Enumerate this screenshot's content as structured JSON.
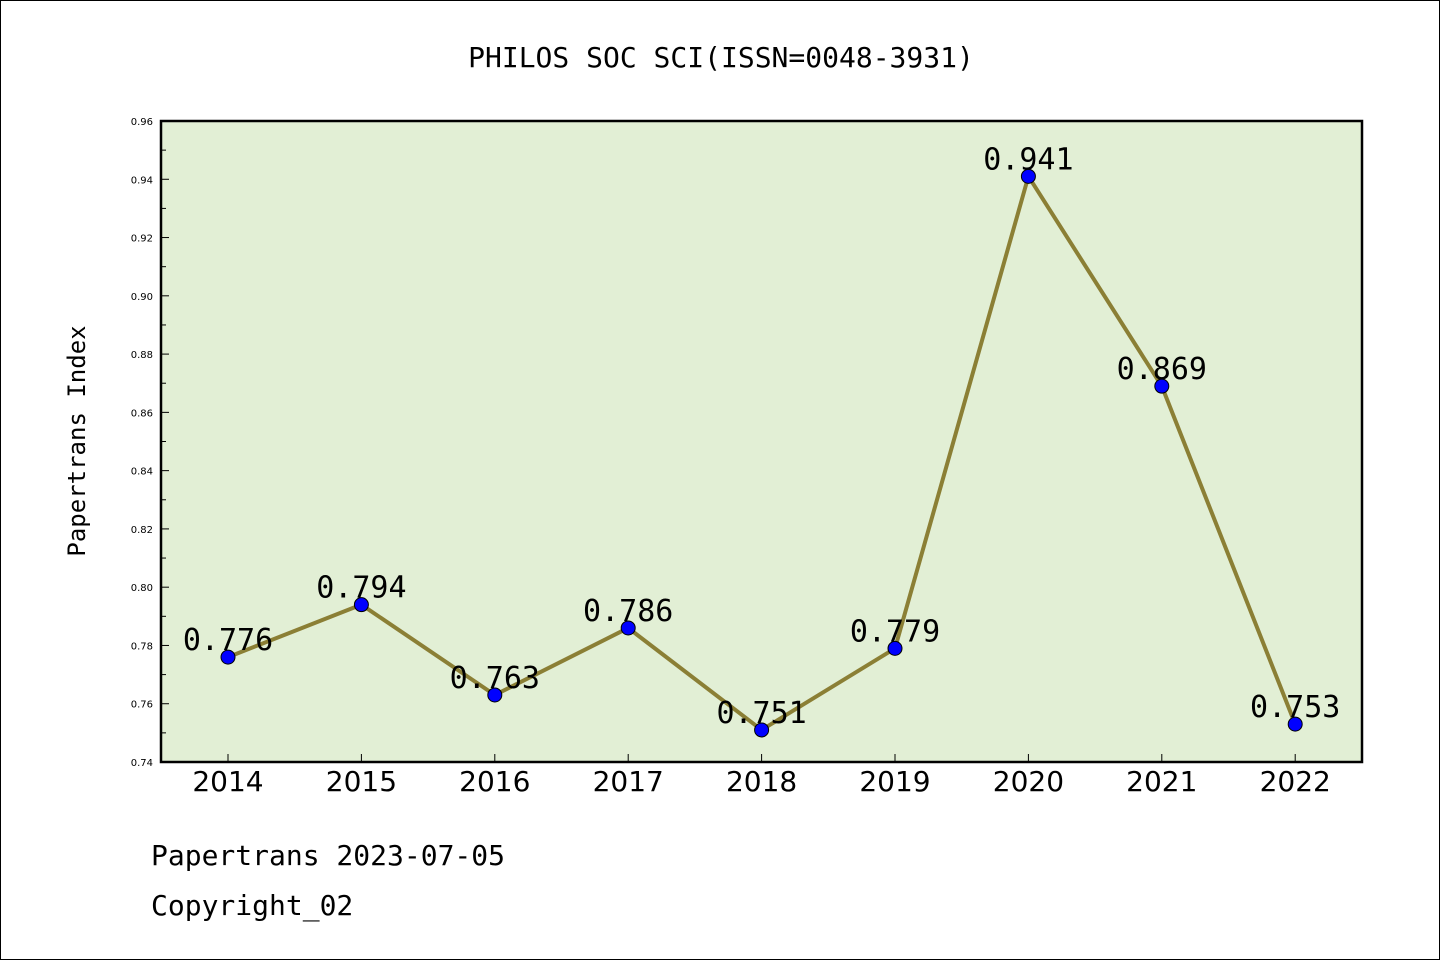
{
  "chart_data": {
    "type": "line",
    "title": "PHILOS SOC SCI(ISSN=0048-3931)",
    "xlabel": "",
    "ylabel": "Papertrans Index",
    "categories": [
      "2014",
      "2015",
      "2016",
      "2017",
      "2018",
      "2019",
      "2020",
      "2021",
      "2022"
    ],
    "series": [
      {
        "values": [
          0.776,
          0.794,
          0.763,
          0.786,
          0.751,
          0.779,
          0.941,
          0.869,
          0.753
        ],
        "data_labels": [
          "0.776",
          "0.794",
          "0.763",
          "0.786",
          "0.751",
          "0.779",
          "0.941",
          "0.869",
          "0.753"
        ]
      }
    ],
    "ylim": [
      0.74,
      0.96
    ],
    "yticks": [
      "0.74",
      "0.76",
      "0.78",
      "0.80",
      "0.82",
      "0.84",
      "0.86",
      "0.88",
      "0.90",
      "0.92",
      "0.94",
      "0.96"
    ],
    "grid": false,
    "legend": "none",
    "colors": {
      "plot_background": "#e2efd5",
      "line": "#8b7f35",
      "marker": "#0000ff"
    }
  },
  "footer": {
    "line1": "Papertrans 2023-07-05",
    "line2": "Copyright_02"
  }
}
